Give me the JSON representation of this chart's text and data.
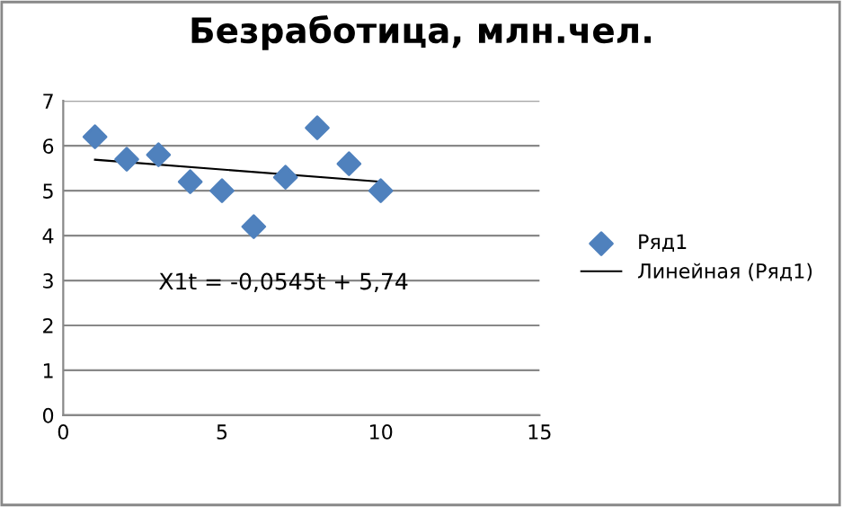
{
  "chart_data": {
    "type": "scatter",
    "title": "Безработица, млн.чел.",
    "xlim": [
      0,
      15
    ],
    "xticks": [
      0,
      5,
      10,
      15
    ],
    "ylim": [
      0,
      7
    ],
    "yticks": [
      0,
      1,
      2,
      3,
      4,
      5,
      6,
      7
    ],
    "grid": "y",
    "legend": "right",
    "annotations": [
      "X1t = -0,0545t + 5,74"
    ],
    "series": [
      {
        "name": "Ряд1",
        "color": "#4f81bd",
        "marker": "diamond",
        "x": [
          1,
          2,
          3,
          4,
          5,
          6,
          7,
          8,
          9,
          10
        ],
        "values": [
          6.2,
          5.7,
          5.8,
          5.2,
          5.0,
          4.2,
          5.3,
          6.4,
          5.6,
          5.0
        ]
      },
      {
        "name": "Линейная (Ряд1)",
        "type": "line",
        "marker": "none",
        "color": "#000000",
        "x": [
          1,
          10
        ],
        "values": [
          5.69,
          5.2
        ]
      }
    ]
  }
}
